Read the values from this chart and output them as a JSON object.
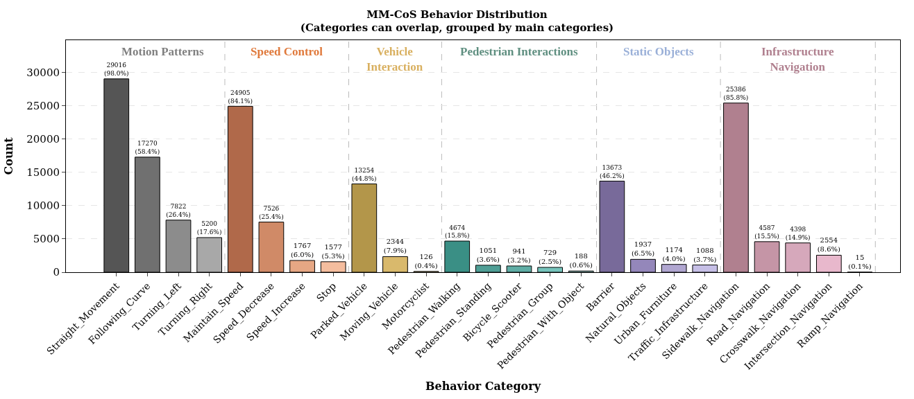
{
  "chart_data": {
    "type": "bar",
    "title": "MM-CoS Behavior Distribution",
    "subtitle": "(Categories can overlap, grouped by main categories)",
    "xlabel": "Behavior Category",
    "ylabel": "Count",
    "categories": [
      "Straight_Movement",
      "Following_Curve",
      "Turning_Left",
      "Turning_Right",
      "Maintain_Speed",
      "Speed_Decrease",
      "Speed_Increase",
      "Stop",
      "Parked_Vehicle",
      "Moving_Vehicle",
      "Motorcyclist",
      "Pedestrian_Walking",
      "Pedestrian_Standing",
      "Bicycle_Scooter",
      "Pedestrian_Group",
      "Pedestrian_With_Object",
      "Barrier",
      "Natural_Objects",
      "Urban_Furniture",
      "Traffic_Infrastructure",
      "Sidewalk_Navigation",
      "Road_Navigation",
      "Crosswalk_Navigation",
      "Intersection_Navigation",
      "Ramp_Navigation"
    ],
    "values": [
      29016,
      17270,
      7822,
      5200,
      24905,
      7526,
      1767,
      1577,
      13254,
      2344,
      126,
      4674,
      1051,
      941,
      729,
      188,
      13673,
      1937,
      1174,
      1088,
      25386,
      4587,
      4398,
      2554,
      15
    ],
    "value_labels": [
      "29016\n(98.0%)",
      "17270\n(58.4%)",
      "7822\n(26.4%)",
      "5200\n(17.6%)",
      "24905\n(84.1%)",
      "7526\n(25.4%)",
      "1767\n(6.0%)",
      "1577\n(5.3%)",
      "13254\n(44.8%)",
      "2344\n(7.9%)",
      "126\n(0.4%)",
      "4674\n(15.8%)",
      "1051\n(3.6%)",
      "941\n(3.2%)",
      "729\n(2.5%)",
      "188\n(0.6%)",
      "13673\n(46.2%)",
      "1937\n(6.5%)",
      "1174\n(4.0%)",
      "1088\n(3.7%)",
      "25386\n(85.8%)",
      "4587\n(15.5%)",
      "4398\n(14.9%)",
      "2554\n(8.6%)",
      "15\n(0.1%)"
    ],
    "colors": [
      "#555555",
      "#707070",
      "#8c8c8c",
      "#a8a8a8",
      "#b0694a",
      "#d08a67",
      "#e6a784",
      "#f5bd9e",
      "#b3964a",
      "#d9b96c",
      "#eed9a7",
      "#3a8f85",
      "#4f9e95",
      "#5fada5",
      "#76c4bc",
      "#9fd8d3",
      "#786a9a",
      "#9487ba",
      "#b0a6d0",
      "#c6bfe6",
      "#b0808f",
      "#c595a6",
      "#d6a8bb",
      "#e8b8cc",
      "#f4cfe0"
    ],
    "ylim": [
      0,
      34819
    ],
    "yticks": [
      0,
      5000,
      10000,
      15000,
      20000,
      25000,
      30000
    ],
    "grid": "y",
    "annotations": [
      "Motion Patterns",
      "Speed Control",
      "Vehicle\nInteraction",
      "Pedestrian Interactions",
      "Static Objects",
      "Infrastructure\nNavigation"
    ]
  }
}
